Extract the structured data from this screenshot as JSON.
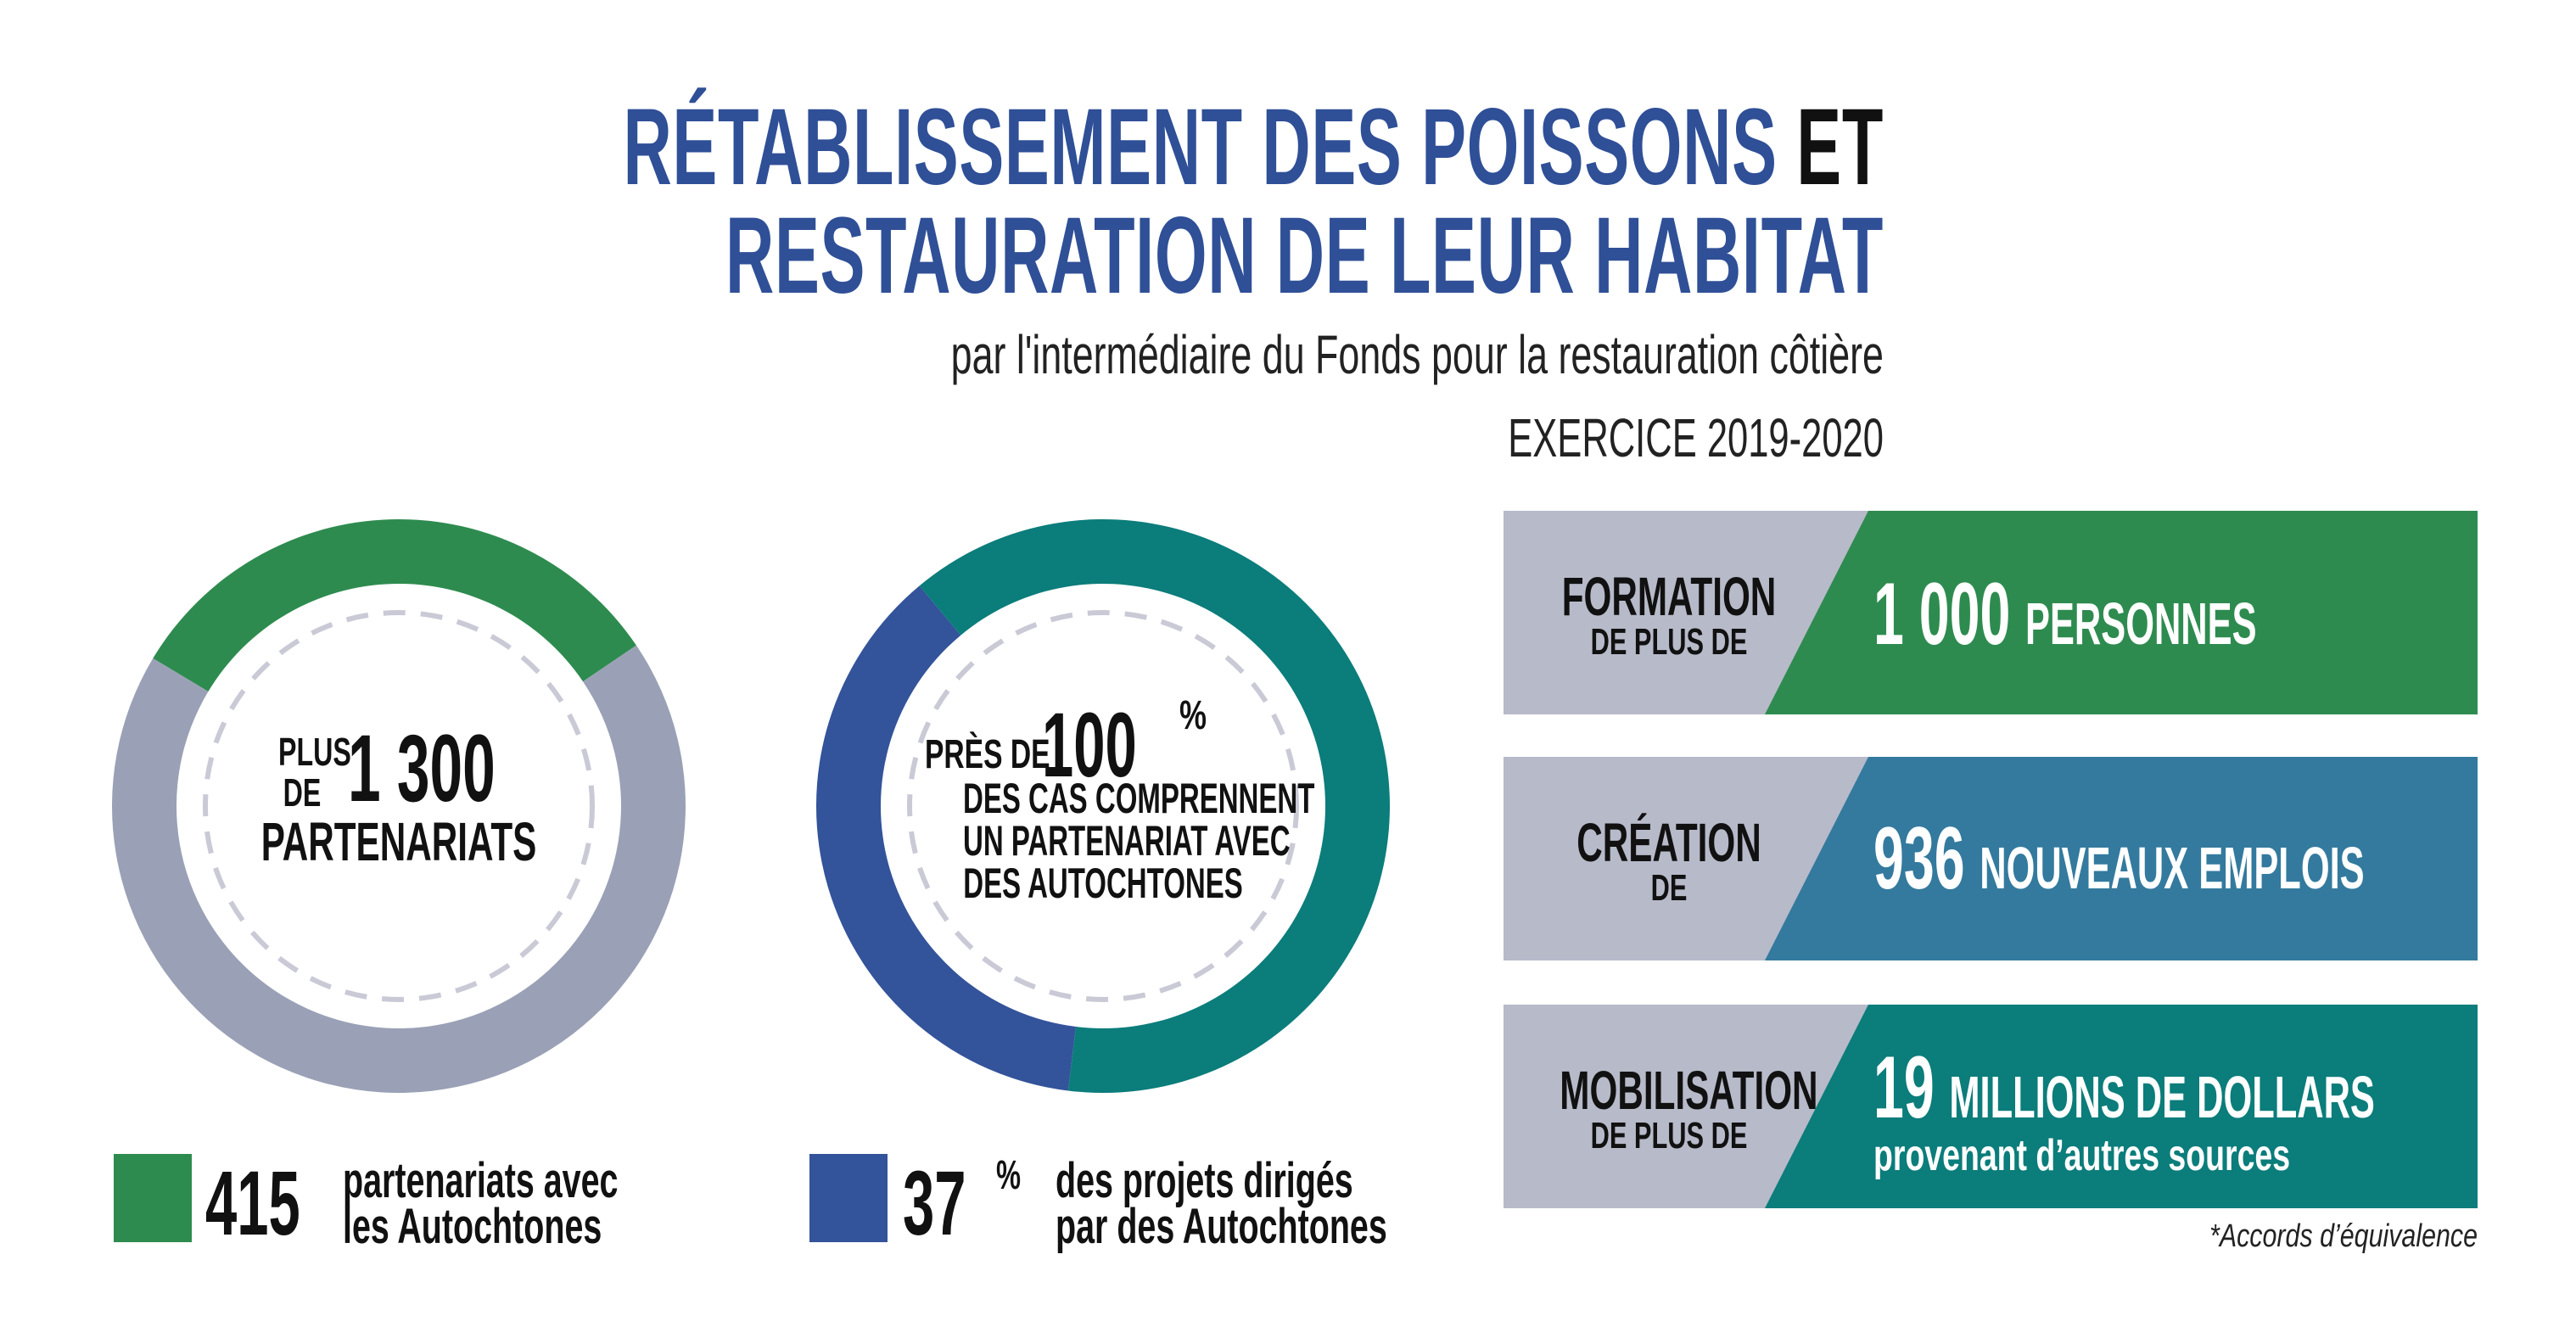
{
  "title": {
    "line1_blue": "RÉTABLISSEMENT DES POISSONS",
    "line1_dark": "ET",
    "line2": "RESTAURATION DE LEUR HABITAT",
    "subtitle": "par l'intermédiaire du Fonds pour la restauration côtière",
    "year": "EXERCICE 2019-2020"
  },
  "colors": {
    "title_blue": "#2f4f97",
    "green": "#2e8b4f",
    "gray": "#9aa1b6",
    "teal": "#0b7d7b",
    "navy": "#33539a",
    "steel": "#337a9e",
    "label_gray": "#b7bac9"
  },
  "donut1": {
    "pre": "PLUS",
    "pre2": "DE",
    "number": "1 300",
    "label": "PARTENARIATS",
    "legend_value": "415",
    "legend_text1": "partenariats avec",
    "legend_text2": "les Autochtones"
  },
  "donut2": {
    "pre": "PRÈS DE",
    "number": "100",
    "unit": "%",
    "line1": "DES CAS COMPRENNENT",
    "line2": "UN PARTENARIAT AVEC",
    "line3": "DES AUTOCHTONES",
    "legend_value": "37",
    "legend_unit": "%",
    "legend_text1": "des projets dirigés",
    "legend_text2": "par des Autochtones"
  },
  "chart_data": [
    {
      "type": "pie",
      "title": "",
      "categories": [
        "partenariats avec les Autochtones",
        "autres partenariats"
      ],
      "values": [
        415,
        885
      ],
      "total": 1300,
      "colors": [
        "#2e8b4f",
        "#9aa1b6"
      ]
    },
    {
      "type": "pie",
      "title": "",
      "categories": [
        "projets dirigés par des Autochtones",
        "autres projets"
      ],
      "values": [
        37,
        63
      ],
      "unit": "%",
      "colors": [
        "#33539a",
        "#0b7d7b"
      ]
    }
  ],
  "bars": [
    {
      "label_big": "FORMATION",
      "label_small": "DE PLUS DE",
      "number": "1 000",
      "unit": "PERSONNES",
      "sub": ""
    },
    {
      "label_big": "CRÉATION",
      "label_small": "DE",
      "number": "936",
      "unit": "NOUVEAUX EMPLOIS",
      "sub": ""
    },
    {
      "label_big": "MOBILISATION",
      "label_small": "DE PLUS DE",
      "number": "19",
      "unit": "MILLIONS DE DOLLARS",
      "sub": "provenant d’autres sources"
    }
  ],
  "footnote": "*Accords d’équivalence"
}
